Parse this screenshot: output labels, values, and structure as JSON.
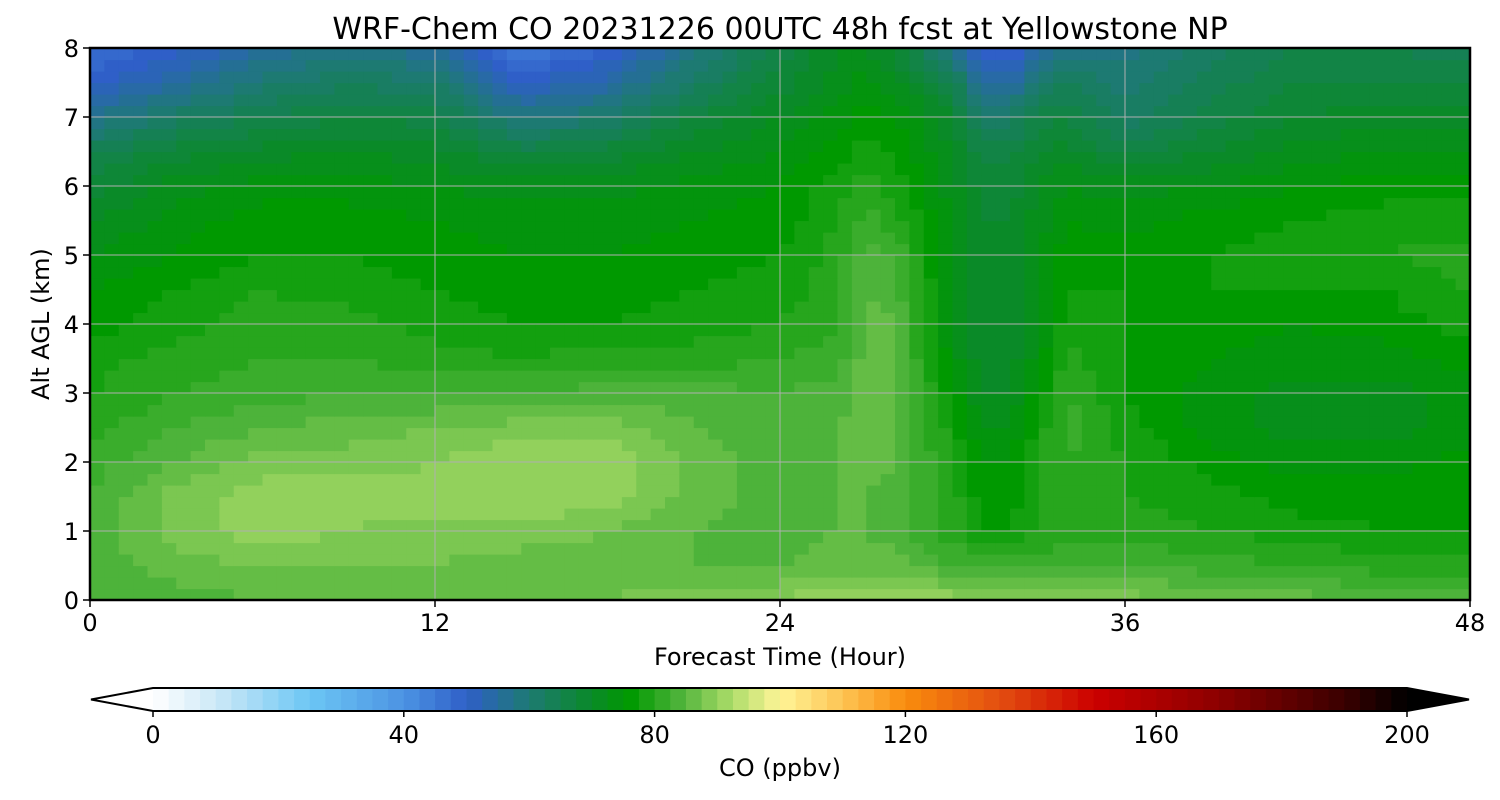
{
  "chart_data": {
    "type": "heatmap",
    "title": "WRF-Chem CO  20231226 00UTC 48h fcst at Yellowstone NP",
    "xlabel": "Forecast Time (Hour)",
    "ylabel": "Alt AGL (km)",
    "xlim": [
      0,
      48
    ],
    "ylim": [
      0,
      8
    ],
    "xticks": [
      "0",
      "12",
      "24",
      "36",
      "48"
    ],
    "yticks": [
      "0",
      "1",
      "2",
      "3",
      "4",
      "5",
      "6",
      "7",
      "8"
    ],
    "grid": true,
    "x": [
      0,
      3,
      6,
      9,
      12,
      15,
      18,
      21,
      24,
      26,
      27,
      28,
      30,
      31,
      32,
      33,
      34,
      36,
      39,
      42,
      45,
      48
    ],
    "y": [
      0,
      0.5,
      1,
      1.5,
      2,
      2.5,
      3,
      3.5,
      4,
      4.5,
      5,
      5.5,
      6,
      6.5,
      7,
      7.5,
      8
    ],
    "z": [
      [
        84,
        84,
        85,
        85,
        86,
        87,
        87,
        88,
        89,
        91,
        91,
        91,
        90,
        89,
        88,
        88,
        88,
        88,
        87,
        86,
        85,
        84
      ],
      [
        84,
        86,
        87,
        87,
        87,
        86,
        86,
        85,
        85,
        86,
        86,
        86,
        83,
        82,
        82,
        82,
        83,
        83,
        82,
        81,
        80,
        80
      ],
      [
        84,
        88,
        90,
        89,
        88,
        88,
        87,
        85,
        84,
        85,
        85,
        84,
        80,
        77,
        77,
        79,
        80,
        80,
        79,
        78,
        77,
        77
      ],
      [
        83,
        88,
        90,
        90,
        90,
        91,
        90,
        86,
        84,
        85,
        85,
        84,
        80,
        76,
        76,
        79,
        80,
        79,
        78,
        76,
        76,
        77
      ],
      [
        82,
        85,
        88,
        88,
        89,
        91,
        91,
        86,
        84,
        85,
        86,
        85,
        79,
        75,
        75,
        79,
        81,
        79,
        76,
        74,
        74,
        76
      ],
      [
        80,
        83,
        85,
        86,
        87,
        88,
        88,
        85,
        84,
        85,
        86,
        85,
        78,
        73,
        73,
        78,
        82,
        78,
        74,
        72,
        72,
        74
      ],
      [
        79,
        81,
        82,
        83,
        83,
        83,
        84,
        84,
        83,
        84,
        86,
        85,
        76,
        71,
        71,
        76,
        81,
        77,
        74,
        72,
        72,
        74
      ],
      [
        78,
        80,
        81,
        81,
        80,
        79,
        80,
        80,
        81,
        82,
        86,
        85,
        74,
        70,
        70,
        74,
        80,
        77,
        75,
        74,
        74,
        76
      ],
      [
        76,
        78,
        80,
        80,
        78,
        77,
        77,
        78,
        79,
        81,
        86,
        85,
        73,
        69,
        69,
        73,
        78,
        77,
        76,
        75,
        76,
        78
      ],
      [
        75,
        77,
        79,
        78,
        77,
        76,
        76,
        77,
        78,
        80,
        85,
        84,
        73,
        69,
        69,
        73,
        77,
        77,
        77,
        77,
        77,
        79
      ],
      [
        73,
        75,
        77,
        77,
        76,
        75,
        75,
        76,
        77,
        80,
        84,
        83,
        73,
        69,
        69,
        73,
        76,
        76,
        77,
        78,
        79,
        80
      ],
      [
        71,
        74,
        76,
        76,
        75,
        74,
        74,
        75,
        76,
        79,
        82,
        80,
        73,
        69,
        69,
        72,
        75,
        74,
        76,
        77,
        78,
        78
      ],
      [
        68,
        72,
        74,
        74,
        73,
        72,
        72,
        74,
        75,
        78,
        80,
        78,
        72,
        68,
        68,
        71,
        73,
        72,
        73,
        75,
        76,
        76
      ],
      [
        64,
        68,
        70,
        71,
        70,
        66,
        68,
        71,
        73,
        76,
        78,
        77,
        71,
        66,
        66,
        69,
        70,
        66,
        69,
        72,
        73,
        73
      ],
      [
        57,
        62,
        65,
        67,
        66,
        58,
        61,
        67,
        71,
        74,
        76,
        75,
        69,
        61,
        61,
        66,
        67,
        62,
        66,
        69,
        70,
        70
      ],
      [
        50,
        55,
        60,
        63,
        61,
        51,
        54,
        62,
        68,
        72,
        74,
        72,
        65,
        54,
        54,
        61,
        63,
        60,
        64,
        67,
        67,
        67
      ],
      [
        46,
        50,
        55,
        58,
        55,
        44,
        49,
        58,
        66,
        71,
        71,
        68,
        58,
        48,
        48,
        55,
        58,
        58,
        62,
        65,
        65,
        64
      ]
    ],
    "colorbar": {
      "label": "CO  (ppbv)",
      "min": 0,
      "max": 200,
      "ticks": [
        "0",
        "40",
        "80",
        "120",
        "160",
        "200"
      ],
      "extend": "both",
      "stops": [
        {
          "v": 0,
          "c": "#ffffff"
        },
        {
          "v": 10,
          "c": "#cde9f7"
        },
        {
          "v": 25,
          "c": "#6cc6f4"
        },
        {
          "v": 40,
          "c": "#4c93e3"
        },
        {
          "v": 50,
          "c": "#2f5fc8"
        },
        {
          "v": 60,
          "c": "#1d7a72"
        },
        {
          "v": 70,
          "c": "#0a8a28"
        },
        {
          "v": 76,
          "c": "#009900"
        },
        {
          "v": 84,
          "c": "#4db33a"
        },
        {
          "v": 92,
          "c": "#a9db67"
        },
        {
          "v": 100,
          "c": "#fff597"
        },
        {
          "v": 110,
          "c": "#fdc453"
        },
        {
          "v": 120,
          "c": "#f98c0d"
        },
        {
          "v": 135,
          "c": "#e34e10"
        },
        {
          "v": 150,
          "c": "#cc0000"
        },
        {
          "v": 170,
          "c": "#8c0000"
        },
        {
          "v": 190,
          "c": "#3a0000"
        },
        {
          "v": 200,
          "c": "#000000"
        }
      ]
    }
  }
}
